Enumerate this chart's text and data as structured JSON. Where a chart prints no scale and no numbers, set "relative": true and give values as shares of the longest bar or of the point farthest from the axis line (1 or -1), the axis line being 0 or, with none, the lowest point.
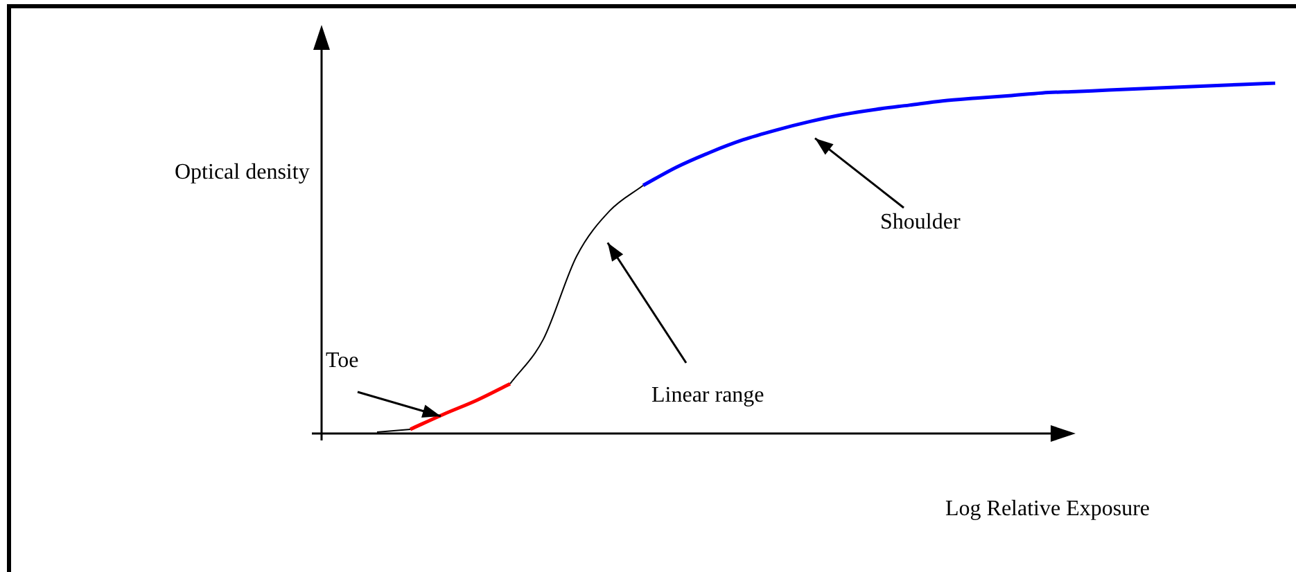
{
  "chart_data": {
    "type": "line",
    "relative": true,
    "xlabel": "Log Relative Exposure",
    "ylabel": "Optical density",
    "legend": false,
    "marker": "none",
    "categories": [
      null,
      null,
      null,
      null,
      null,
      null,
      null,
      null,
      null,
      null,
      null,
      null,
      null,
      null,
      null,
      null,
      null,
      null,
      null,
      null,
      null,
      null,
      null,
      null,
      null,
      null,
      null,
      null
    ],
    "series": [
      {
        "color": "#000000",
        "values": [
          0.004,
          0.012,
          null,
          null,
          0.142,
          0.269,
          0.506,
          0.636,
          0.708,
          null,
          null,
          null,
          null,
          null,
          null,
          null,
          null,
          null,
          null,
          null,
          null,
          null,
          null,
          null,
          null,
          null,
          null,
          null
        ]
      },
      {
        "color": "#ff0000",
        "values": [
          null,
          0.012,
          0.055,
          0.095,
          0.142,
          null,
          null,
          null,
          null,
          null,
          null,
          null,
          null,
          null,
          null,
          null,
          null,
          null,
          null,
          null,
          null,
          null,
          null,
          null,
          null,
          null,
          null,
          null
        ]
      },
      {
        "color": "#0000ff",
        "values": [
          null,
          null,
          null,
          null,
          null,
          null,
          null,
          null,
          0.708,
          0.76,
          0.802,
          0.838,
          0.866,
          0.89,
          0.91,
          0.925,
          0.937,
          0.949,
          0.957,
          0.964,
          0.972,
          0.976,
          0.98,
          0.984,
          0.988,
          0.992,
          0.996,
          1
        ]
      }
    ],
    "annotations": [
      "Toe",
      "Linear range",
      "Shoulder"
    ]
  }
}
